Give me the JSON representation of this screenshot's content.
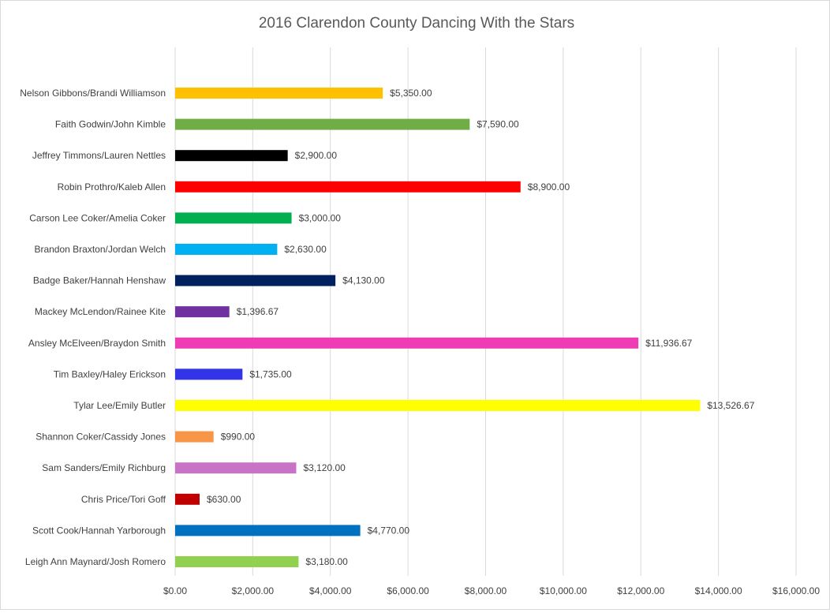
{
  "chart_data": {
    "type": "bar",
    "orientation": "horizontal",
    "title": "2016 Clarendon County Dancing With the Stars",
    "xlabel": "",
    "ylabel": "",
    "xlim": [
      0,
      16000
    ],
    "grid": true,
    "legend": "none",
    "x_ticks": [
      "$0.00",
      "$2,000.00",
      "$4,000.00",
      "$6,000.00",
      "$8,000.00",
      "$10,000.00",
      "$12,000.00",
      "$14,000.00",
      "$16,000.00"
    ],
    "bars": [
      {
        "category": "Nelson Gibbons/Brandi Williamson",
        "value": 5350.0,
        "label": "$5,350.00",
        "color": "#ffc000"
      },
      {
        "category": "Faith Godwin/John Kimble",
        "value": 7590.0,
        "label": "$7,590.00",
        "color": "#70ad47"
      },
      {
        "category": "Jeffrey Timmons/Lauren Nettles",
        "value": 2900.0,
        "label": "$2,900.00",
        "color": "#000000"
      },
      {
        "category": "Robin Prothro/Kaleb Allen",
        "value": 8900.0,
        "label": "$8,900.00",
        "color": "#ff0000"
      },
      {
        "category": "Carson Lee Coker/Amelia Coker",
        "value": 3000.0,
        "label": "$3,000.00",
        "color": "#00b050"
      },
      {
        "category": "Brandon Braxton/Jordan Welch",
        "value": 2630.0,
        "label": "$2,630.00",
        "color": "#00b0f0"
      },
      {
        "category": "Badge Baker/Hannah Henshaw",
        "value": 4130.0,
        "label": "$4,130.00",
        "color": "#002060"
      },
      {
        "category": "Mackey McLendon/Rainee Kite",
        "value": 1396.67,
        "label": "$1,396.67",
        "color": "#7030a0"
      },
      {
        "category": "Ansley McElveen/Braydon Smith",
        "value": 11936.67,
        "label": "$11,936.67",
        "color": "#f03cb4"
      },
      {
        "category": "Tim Baxley/Haley Erickson",
        "value": 1735.0,
        "label": "$1,735.00",
        "color": "#3333e8"
      },
      {
        "category": "Tylar Lee/Emily Butler",
        "value": 13526.67,
        "label": "$13,526.67",
        "color": "#ffff00"
      },
      {
        "category": "Shannon Coker/Cassidy Jones",
        "value": 990.0,
        "label": "$990.00",
        "color": "#f79646"
      },
      {
        "category": "Sam Sanders/Emily Richburg",
        "value": 3120.0,
        "label": "$3,120.00",
        "color": "#c774c7"
      },
      {
        "category": "Chris Price/Tori Goff",
        "value": 630.0,
        "label": "$630.00",
        "color": "#c00000"
      },
      {
        "category": "Scott Cook/Hannah Yarborough",
        "value": 4770.0,
        "label": "$4,770.00",
        "color": "#0070c0"
      },
      {
        "category": "Leigh Ann Maynard/Josh Romero",
        "value": 3180.0,
        "label": "$3,180.00",
        "color": "#92d050"
      }
    ]
  }
}
